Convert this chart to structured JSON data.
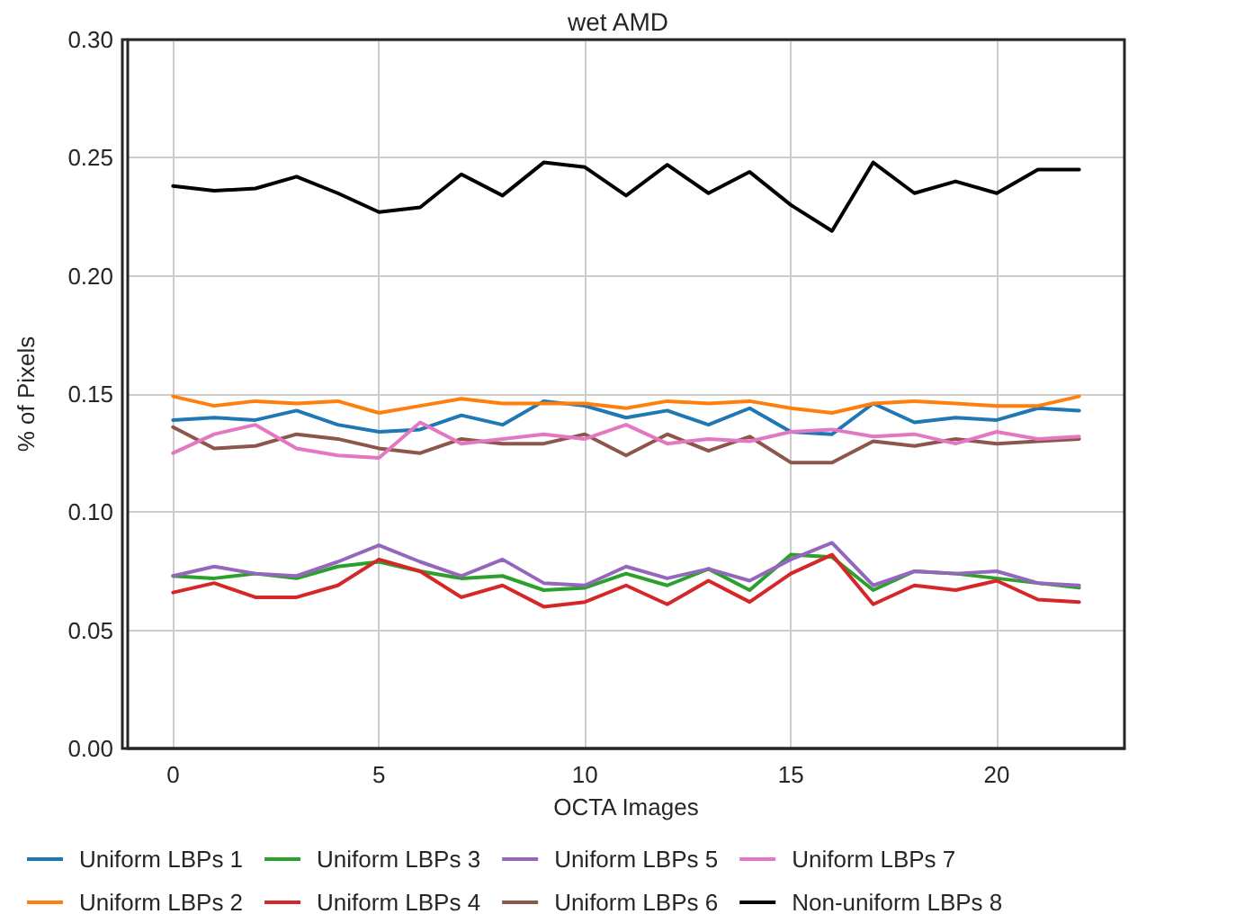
{
  "chart_data": {
    "type": "line",
    "title": "wet AMD",
    "xlabel": "OCTA Images",
    "ylabel": "% of Pixels",
    "x": [
      0,
      1,
      2,
      3,
      4,
      5,
      6,
      7,
      8,
      9,
      10,
      11,
      12,
      13,
      14,
      15,
      16,
      17,
      18,
      19,
      20,
      21,
      22
    ],
    "xlim": [
      -1.1,
      23.1
    ],
    "xticks": [
      0,
      5,
      10,
      15,
      20
    ],
    "ylim": [
      0,
      0.3
    ],
    "yticks": [
      {
        "value": 0,
        "label": "0.00"
      },
      {
        "value": 0.05,
        "label": "0.05"
      },
      {
        "value": 0.1,
        "label": "0.10"
      },
      {
        "value": 0.15,
        "label": "0.15"
      },
      {
        "value": 0.2,
        "label": "0.20"
      },
      {
        "value": 0.25,
        "label": "0.25"
      },
      {
        "value": 0.3,
        "label": "0.30"
      }
    ],
    "grid": true,
    "legend": "bottom",
    "marker": "none",
    "line_style": "solid",
    "series": [
      {
        "name": "Uniform LBPs 1",
        "color": "#1f77b4",
        "values": [
          0.139,
          0.14,
          0.139,
          0.143,
          0.137,
          0.134,
          0.135,
          0.141,
          0.137,
          0.147,
          0.145,
          0.14,
          0.143,
          0.137,
          0.144,
          0.134,
          0.133,
          0.146,
          0.138,
          0.14,
          0.139,
          0.144,
          0.143
        ]
      },
      {
        "name": "Uniform LBPs 2",
        "color": "#ff7f0e",
        "values": [
          0.149,
          0.145,
          0.147,
          0.146,
          0.147,
          0.142,
          0.145,
          0.148,
          0.146,
          0.146,
          0.146,
          0.144,
          0.147,
          0.146,
          0.147,
          0.144,
          0.142,
          0.146,
          0.147,
          0.146,
          0.145,
          0.145,
          0.149
        ]
      },
      {
        "name": "Uniform LBPs 3",
        "color": "#2ca02c",
        "values": [
          0.073,
          0.072,
          0.074,
          0.072,
          0.077,
          0.079,
          0.075,
          0.072,
          0.073,
          0.067,
          0.068,
          0.074,
          0.069,
          0.076,
          0.067,
          0.082,
          0.081,
          0.067,
          0.075,
          0.074,
          0.072,
          0.07,
          0.068
        ]
      },
      {
        "name": "Uniform LBPs 4",
        "color": "#d62728",
        "values": [
          0.066,
          0.07,
          0.064,
          0.064,
          0.069,
          0.08,
          0.075,
          0.064,
          0.069,
          0.06,
          0.062,
          0.069,
          0.061,
          0.071,
          0.062,
          0.074,
          0.082,
          0.061,
          0.069,
          0.067,
          0.071,
          0.063,
          0.062
        ]
      },
      {
        "name": "Uniform LBPs 5",
        "color": "#9467bd",
        "values": [
          0.073,
          0.077,
          0.074,
          0.073,
          0.079,
          0.086,
          0.079,
          0.073,
          0.08,
          0.07,
          0.069,
          0.077,
          0.072,
          0.076,
          0.071,
          0.08,
          0.087,
          0.069,
          0.075,
          0.074,
          0.075,
          0.07,
          0.069
        ]
      },
      {
        "name": "Uniform LBPs 6",
        "color": "#8c564b",
        "values": [
          0.136,
          0.127,
          0.128,
          0.133,
          0.131,
          0.127,
          0.125,
          0.131,
          0.129,
          0.129,
          0.133,
          0.124,
          0.133,
          0.126,
          0.132,
          0.121,
          0.121,
          0.13,
          0.128,
          0.131,
          0.129,
          0.13,
          0.131
        ]
      },
      {
        "name": "Uniform LBPs 7",
        "color": "#e377c2",
        "values": [
          0.125,
          0.133,
          0.137,
          0.127,
          0.124,
          0.123,
          0.138,
          0.129,
          0.131,
          0.133,
          0.131,
          0.137,
          0.129,
          0.131,
          0.13,
          0.134,
          0.135,
          0.132,
          0.133,
          0.129,
          0.134,
          0.131,
          0.132
        ]
      },
      {
        "name": "Non-uniform LBPs 8",
        "color": "#000000",
        "values": [
          0.238,
          0.236,
          0.237,
          0.242,
          0.235,
          0.227,
          0.229,
          0.243,
          0.234,
          0.248,
          0.246,
          0.234,
          0.247,
          0.235,
          0.244,
          0.23,
          0.219,
          0.248,
          0.235,
          0.24,
          0.235,
          0.245,
          0.245
        ]
      }
    ]
  }
}
